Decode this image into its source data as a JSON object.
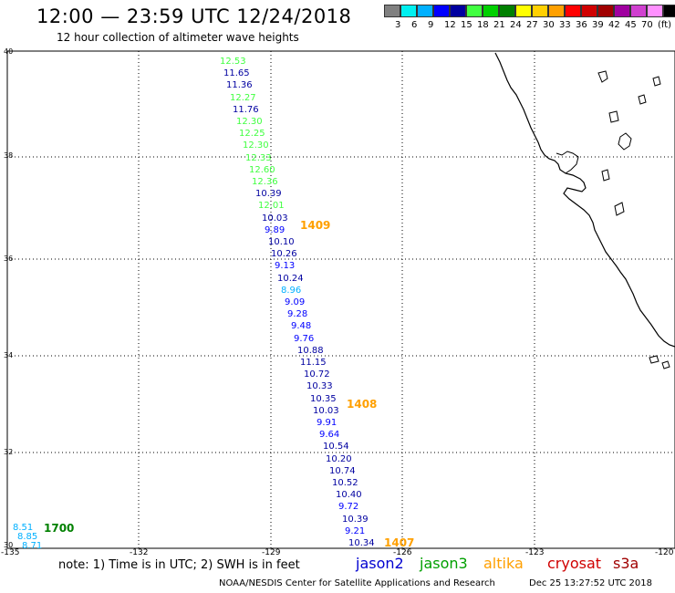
{
  "title": "12:00 — 23:59 UTC 12/24/2018",
  "subtitle": "12 hour collection of altimeter wave heights",
  "legend": {
    "colors": [
      "#808080",
      "#00f0f0",
      "#00b0ff",
      "#0000ff",
      "#0000a0",
      "#40ff40",
      "#00d000",
      "#008000",
      "#ffff00",
      "#ffd000",
      "#ffa000",
      "#ff0000",
      "#d00000",
      "#a00000",
      "#a000a0",
      "#d040d0",
      "#ff90ff",
      "#000000"
    ],
    "labels": [
      "3",
      "6",
      "9",
      "12",
      "15",
      "18",
      "21",
      "24",
      "27",
      "30",
      "33",
      "36",
      "39",
      "42",
      "45",
      "70",
      "(ft)"
    ]
  },
  "axes": {
    "lat_ticks": [
      "40",
      "38",
      "36",
      "34",
      "32",
      "30"
    ],
    "lon_ticks": [
      "-135",
      "-132",
      "-129",
      "-126",
      "-123",
      "-120"
    ]
  },
  "observations": [
    {
      "swh": "12.53",
      "color": "#40ff40"
    },
    {
      "swh": "11.65",
      "color": "#0000a0"
    },
    {
      "swh": "11.36",
      "color": "#0000a0"
    },
    {
      "swh": "12.27",
      "color": "#40ff40"
    },
    {
      "swh": "11.76",
      "color": "#0000a0"
    },
    {
      "swh": "12.30",
      "color": "#40ff40"
    },
    {
      "swh": "12.25",
      "color": "#40ff40"
    },
    {
      "swh": "12.30",
      "color": "#40ff40"
    },
    {
      "swh": "12.33",
      "color": "#40ff40"
    },
    {
      "swh": "12.60",
      "color": "#40ff40"
    },
    {
      "swh": "12.36",
      "color": "#40ff40"
    },
    {
      "swh": "10.39",
      "color": "#0000a0"
    },
    {
      "swh": "12.01",
      "color": "#40ff40"
    },
    {
      "swh": "10.03",
      "color": "#0000a0"
    },
    {
      "swh": "9.89",
      "color": "#0000ff"
    },
    {
      "swh": "10.10",
      "color": "#0000a0"
    },
    {
      "swh": "10.26",
      "color": "#0000a0"
    },
    {
      "swh": "9.13",
      "color": "#0000ff"
    },
    {
      "swh": "10.24",
      "color": "#0000a0"
    },
    {
      "swh": "8.96",
      "color": "#00b0ff"
    },
    {
      "swh": "9.09",
      "color": "#0000ff"
    },
    {
      "swh": "9.28",
      "color": "#0000ff"
    },
    {
      "swh": "9.48",
      "color": "#0000ff"
    },
    {
      "swh": "9.76",
      "color": "#0000ff"
    },
    {
      "swh": "10.88",
      "color": "#0000a0"
    },
    {
      "swh": "11.15",
      "color": "#0000a0"
    },
    {
      "swh": "10.72",
      "color": "#0000a0"
    },
    {
      "swh": "10.33",
      "color": "#0000a0"
    },
    {
      "swh": "10.35",
      "color": "#0000a0"
    },
    {
      "swh": "10.03",
      "color": "#0000a0"
    },
    {
      "swh": "9.91",
      "color": "#0000ff"
    },
    {
      "swh": "9.64",
      "color": "#0000ff"
    },
    {
      "swh": "10.54",
      "color": "#0000a0"
    },
    {
      "swh": "10.20",
      "color": "#0000a0"
    },
    {
      "swh": "10.74",
      "color": "#0000a0"
    },
    {
      "swh": "10.52",
      "color": "#0000a0"
    },
    {
      "swh": "10.40",
      "color": "#0000a0"
    },
    {
      "swh": "9.72",
      "color": "#0000ff"
    },
    {
      "swh": "10.39",
      "color": "#0000a0"
    },
    {
      "swh": "9.21",
      "color": "#0000ff"
    },
    {
      "swh": "10.34",
      "color": "#0000a0"
    }
  ],
  "west_observations": [
    {
      "swh": "8.51",
      "color": "#00b0ff"
    },
    {
      "swh": "8.85",
      "color": "#00b0ff"
    },
    {
      "swh": "8.71",
      "color": "#00b0ff"
    }
  ],
  "time_labels": [
    {
      "text": "1409",
      "color": "#ffa000"
    },
    {
      "text": "1408",
      "color": "#ffa000"
    },
    {
      "text": "1407",
      "color": "#ffa000"
    },
    {
      "text": "1700",
      "color": "#008000"
    }
  ],
  "footer": {
    "note": "note:  1) Time is in UTC;  2) SWH is in feet",
    "satellites": [
      {
        "name": "jason2",
        "color": "#0000d0"
      },
      {
        "name": "jason3",
        "color": "#00a000"
      },
      {
        "name": "altika",
        "color": "#ffa000"
      },
      {
        "name": "cryosat",
        "color": "#d00000"
      },
      {
        "name": "s3a",
        "color": "#a00000"
      }
    ],
    "credit": "NOAA/NESDIS Center for Satellite Applications and Research",
    "timestamp": "Dec 25 13:27:52 UTC 2018"
  }
}
